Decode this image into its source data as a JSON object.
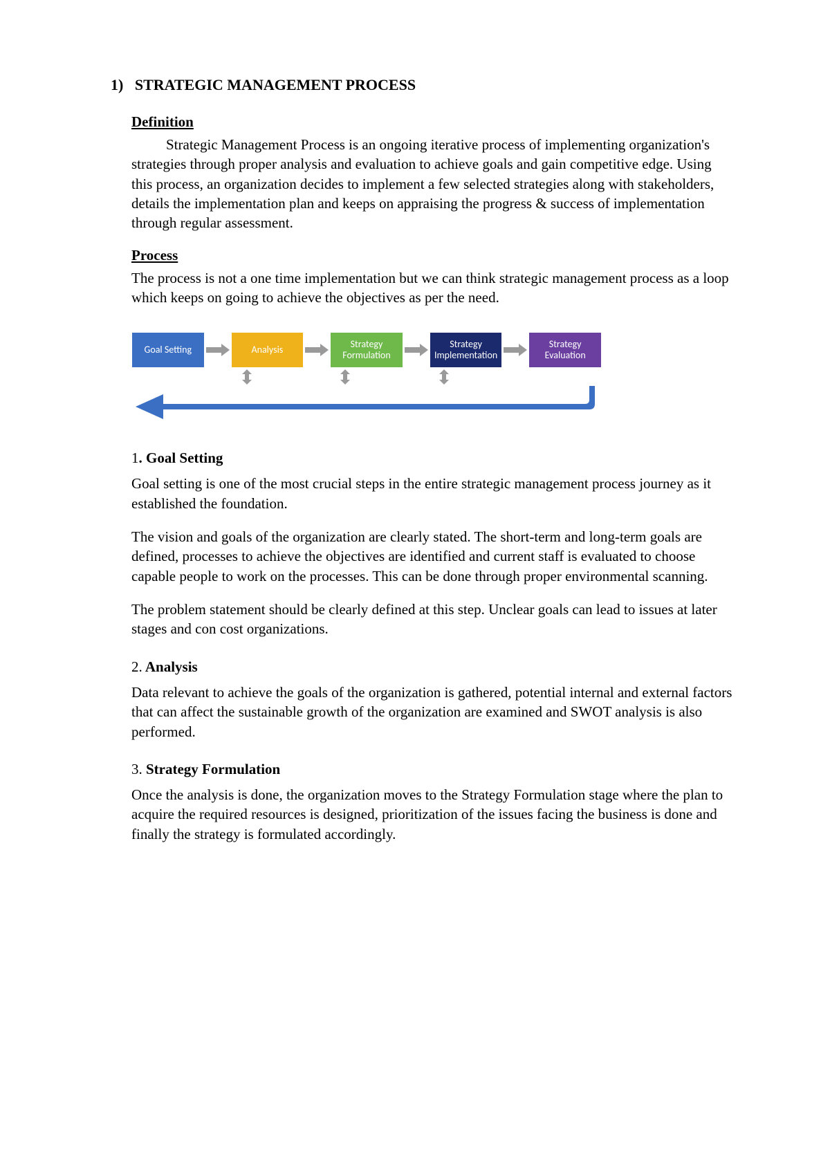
{
  "heading": {
    "number": "1)",
    "title": "STRATEGIC MANAGEMENT PROCESS"
  },
  "definition": {
    "label": "Definition",
    "text": "Strategic Management Process is an ongoing iterative process of implementing organization's strategies through proper analysis and evaluation to achieve goals and gain competitive edge. Using this process, an organization decides to implement a few selected strategies along with stakeholders, details the implementation plan and keeps on appraising the progress & success of implementation through regular assessment."
  },
  "process": {
    "label": "Process",
    "text": "The process is not a one time implementation but we can think strategic management process as a loop which keeps on going to achieve the objectives as per the need."
  },
  "flowchart": {
    "nodes": [
      {
        "label": "Goal Setting",
        "color": "#3b6fc4"
      },
      {
        "label": "Analysis",
        "color": "#f0b21a"
      },
      {
        "label": "Strategy\nFormulation",
        "color": "#6fb84a"
      },
      {
        "label": "Strategy\nImplementation",
        "color": "#1a2a6c"
      },
      {
        "label": "Strategy\nEvaluation",
        "color": "#6a3fa0"
      }
    ],
    "arrow_color": "#9a9a9a",
    "feedback_color": "#3b6fc4",
    "vert_arrow_positions_pct": [
      24.5,
      45.5,
      66.5
    ]
  },
  "sections": [
    {
      "num": "1",
      "num_suffix": ".",
      "title": "Goal Setting",
      "num_bold": false,
      "paras": [
        "Goal setting is one of the most crucial steps in the entire strategic management process journey as it established the foundation.",
        "The vision and goals of the organization are clearly stated. The short-term and long-term goals are defined, processes to achieve the objectives are identified and current staff is evaluated to choose capable people to work on the processes. This can be done through proper environmental scanning.",
        "The problem statement should be clearly defined at this step. Unclear goals can lead to issues at later stages and con cost organizations."
      ]
    },
    {
      "num": "2.",
      "num_suffix": "",
      "title": "Analysis",
      "num_bold": false,
      "paras": [
        "Data relevant to achieve the goals of the organization is gathered, potential internal and external factors that can affect the sustainable growth of the organization are examined and SWOT analysis is also performed."
      ]
    },
    {
      "num": "3.",
      "num_suffix": "",
      "title": "Strategy Formulation",
      "num_bold": false,
      "paras": [
        "Once the analysis is done, the organization moves to the Strategy Formulation stage where the plan to acquire the required resources is designed, prioritization of the issues facing the business is done and finally the strategy is formulated accordingly."
      ]
    }
  ]
}
